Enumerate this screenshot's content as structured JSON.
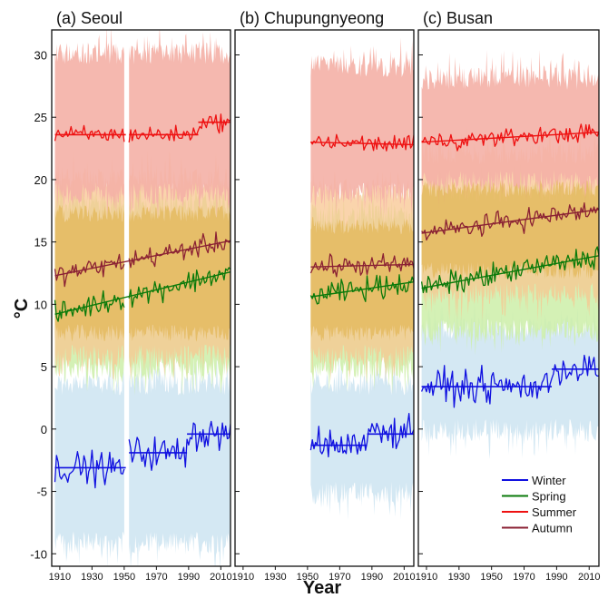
{
  "chart_data": {
    "type": "line",
    "ylabel": "°C",
    "xlabel": "Year",
    "ylim": [
      -11,
      32
    ],
    "yticks": [
      -10,
      -5,
      0,
      5,
      10,
      15,
      20,
      25,
      30
    ],
    "xticks": [
      1910,
      1930,
      1950,
      1970,
      1990,
      2010
    ],
    "xlim": [
      1905,
      2016
    ],
    "colors": {
      "Winter": "#1010e0",
      "Spring": "#0a7a0a",
      "Summer": "#ee1111",
      "Autumn": "#8b2234",
      "Winter_band": "#cfe6f2",
      "Spring_band": "#cdeea8",
      "Summer_band": "#f4b0a6",
      "Autumn_band": "#f8c590",
      "overlap": "#e3b75a"
    },
    "legend": [
      "Winter",
      "Spring",
      "Summer",
      "Autumn"
    ],
    "panels": [
      {
        "title": "(a) Seoul",
        "segments": [
          [
            1907,
            1950
          ],
          [
            1953,
            2016
          ]
        ],
        "series": [
          {
            "name": "Winter",
            "trend": "step",
            "levels": [
              [
                1907,
                1950,
                -3.1
              ],
              [
                1953,
                1988,
                -1.9
              ],
              [
                1989,
                2016,
                -0.4
              ]
            ],
            "band": [
              -10,
              4.5
            ]
          },
          {
            "name": "Spring",
            "trend": "line",
            "start": [
              1907,
              9.2
            ],
            "end": [
              2016,
              12.6
            ],
            "band": [
              4,
              19
            ]
          },
          {
            "name": "Summer",
            "trend": "step",
            "levels": [
              [
                1907,
                1950,
                23.6
              ],
              [
                1953,
                1995,
                23.6
              ],
              [
                1996,
                2016,
                24.6
              ]
            ],
            "band": [
              18,
              31
            ]
          },
          {
            "name": "Autumn",
            "trend": "line",
            "start": [
              1907,
              12.3
            ],
            "end": [
              2016,
              15.1
            ],
            "band": [
              5,
              21
            ]
          }
        ]
      },
      {
        "title": "(b) Chupungnyeong",
        "segments": [
          [
            1952,
            2016
          ]
        ],
        "series": [
          {
            "name": "Winter",
            "trend": "step",
            "levels": [
              [
                1952,
                1986,
                -1.3
              ],
              [
                1987,
                2016,
                -0.4
              ]
            ],
            "band": [
              -6,
              4.5
            ]
          },
          {
            "name": "Spring",
            "trend": "line",
            "start": [
              1952,
              10.6
            ],
            "end": [
              2016,
              11.8
            ],
            "band": [
              4,
              18
            ]
          },
          {
            "name": "Summer",
            "trend": "line",
            "start": [
              1952,
              23.0
            ],
            "end": [
              2016,
              22.8
            ],
            "band": [
              18,
              30
            ]
          },
          {
            "name": "Autumn",
            "trend": "line",
            "start": [
              1952,
              13.0
            ],
            "end": [
              2016,
              13.2
            ],
            "band": [
              5,
              20
            ]
          }
        ]
      },
      {
        "title": "(c) Busan",
        "segments": [
          [
            1907,
            2016
          ]
        ],
        "series": [
          {
            "name": "Winter",
            "trend": "step",
            "levels": [
              [
                1907,
                1986,
                3.4
              ],
              [
                1987,
                2016,
                4.8
              ]
            ],
            "band": [
              -1,
              9
            ]
          },
          {
            "name": "Spring",
            "trend": "line",
            "start": [
              1907,
              11.3
            ],
            "end": [
              2016,
              13.9
            ],
            "band": [
              7,
              20
            ]
          },
          {
            "name": "Summer",
            "trend": "line",
            "start": [
              1907,
              23.0
            ],
            "end": [
              2016,
              23.8
            ],
            "band": [
              19,
              29
            ]
          },
          {
            "name": "Autumn",
            "trend": "line",
            "start": [
              1907,
              15.7
            ],
            "end": [
              2016,
              17.6
            ],
            "band": [
              10,
              23
            ]
          }
        ]
      }
    ]
  }
}
